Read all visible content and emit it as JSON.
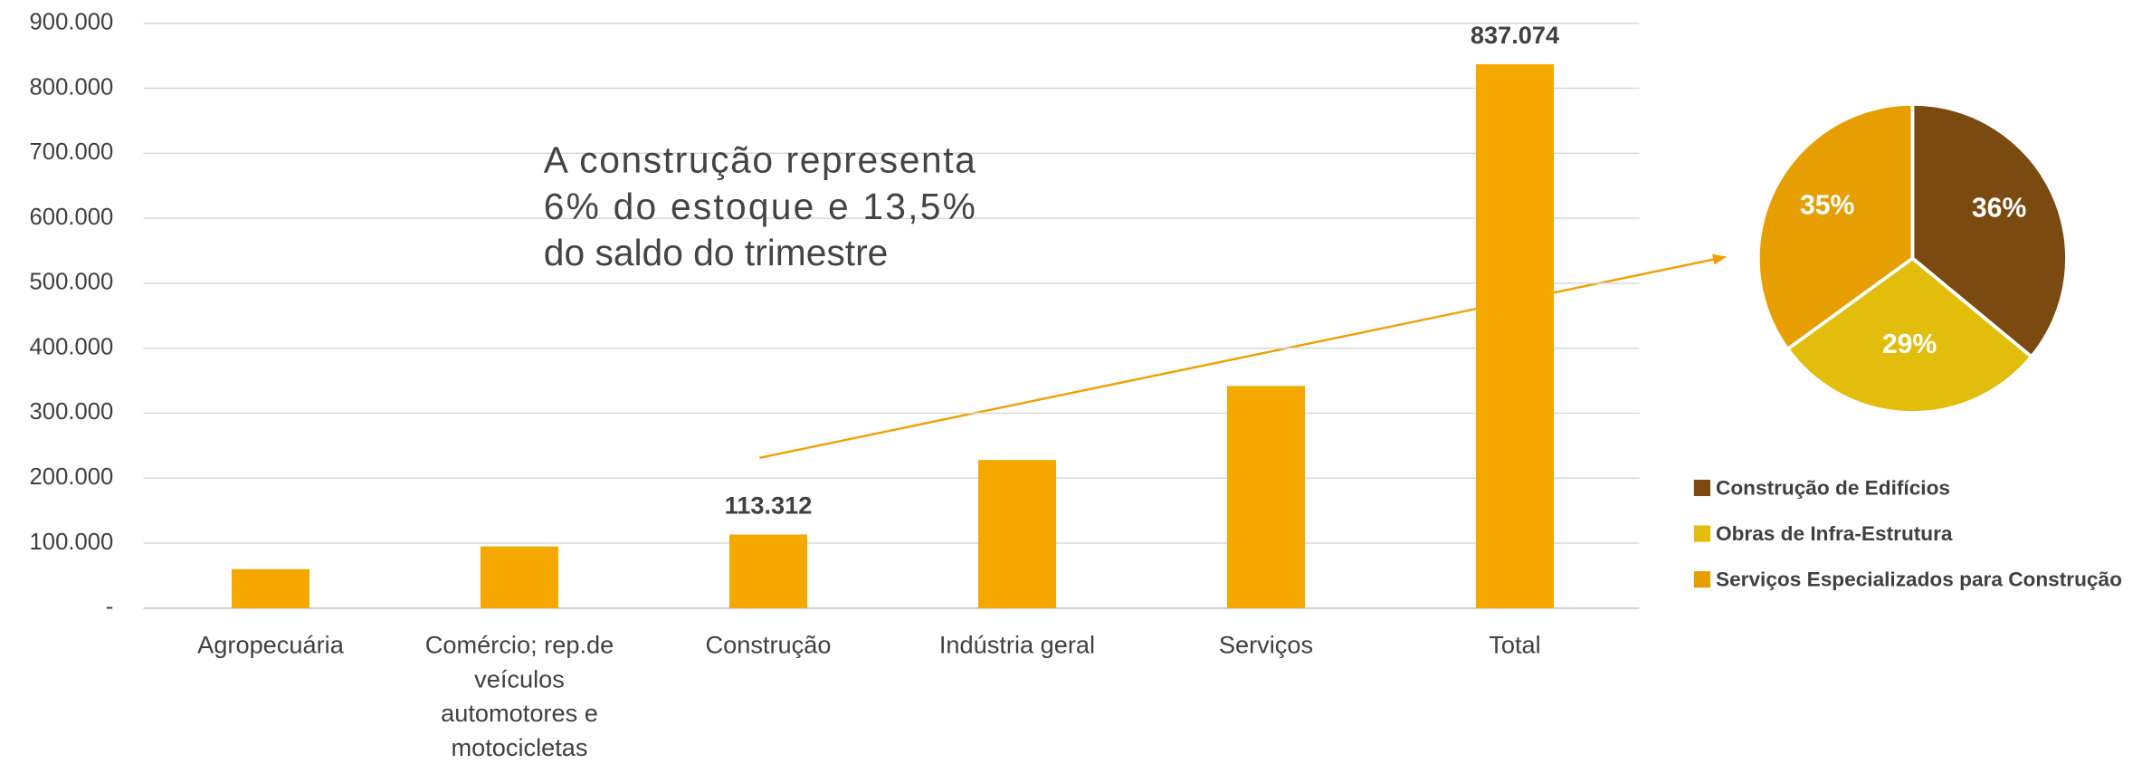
{
  "chart_data": [
    {
      "type": "bar",
      "categories": [
        "Agropecuária",
        "Comércio; rep.de veículos automotores e motocicletas",
        "Construção",
        "Indústria geral",
        "Serviços",
        "Total"
      ],
      "values": [
        60000,
        95000,
        113312,
        228000,
        342000,
        837074
      ],
      "value_labels": [
        null,
        null,
        "113.312",
        null,
        null,
        "837.074"
      ],
      "color": "#f5a800",
      "ylim": [
        0,
        900000
      ],
      "yticks": [
        {
          "value": 0,
          "label": "-"
        },
        {
          "value": 100000,
          "label": "100.000"
        },
        {
          "value": 200000,
          "label": "200.000"
        },
        {
          "value": 300000,
          "label": "300.000"
        },
        {
          "value": 400000,
          "label": "400.000"
        },
        {
          "value": 500000,
          "label": "500.000"
        },
        {
          "value": 600000,
          "label": "600.000"
        },
        {
          "value": 700000,
          "label": "700.000"
        },
        {
          "value": 800000,
          "label": "800.000"
        },
        {
          "value": 900000,
          "label": "900.000"
        }
      ],
      "grid": true,
      "annotation": [
        "A construção representa",
        "6% do estoque  e 13,5%",
        "do saldo do trimestre"
      ]
    },
    {
      "type": "pie",
      "categories": [
        "Construção de Edifícios",
        "Obras de Infra-Estrutura",
        "Serviços Especializados para Construção"
      ],
      "values": [
        36,
        29,
        35
      ],
      "value_labels": [
        "36%",
        "29%",
        "35%"
      ],
      "colors": [
        "#7a4a10",
        "#e2bd0c",
        "#e69e00"
      ]
    }
  ]
}
